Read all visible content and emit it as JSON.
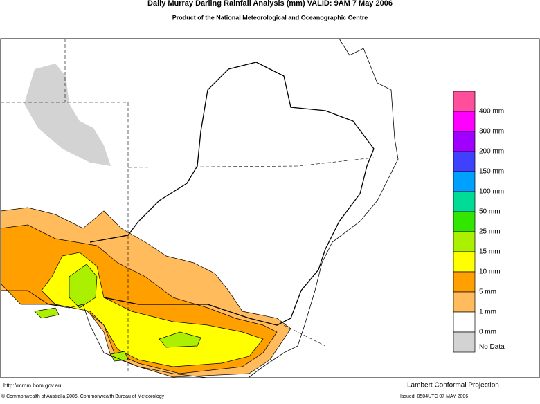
{
  "header": {
    "title": "Daily Murray Darling Rainfall Analysis (mm)  VALID: 9AM  7 May 2006",
    "subtitle": "Product of the National Meteorological and Oceanographic Centre"
  },
  "legend": {
    "colors": [
      "#ff4f9b",
      "#ff00ff",
      "#a000ff",
      "#4040ff",
      "#00a0ff",
      "#00dc96",
      "#33e600",
      "#aaf000",
      "#ffff00",
      "#ff9f00",
      "#ffbb5c",
      "#ffffff",
      "#d3d3d3"
    ],
    "labels": [
      "400 mm",
      "300 mm",
      "200 mm",
      "150 mm",
      "100 mm",
      "50 mm",
      "25 mm",
      "15 mm",
      "10 mm",
      "5 mm",
      "1 mm",
      "0 mm",
      "No Data"
    ]
  },
  "footer": {
    "url": "http://mmm.bom.gov.au",
    "projection": "Lambert Conformal Projection",
    "copyright": "© Commonwealth of Australia 2006, Commonwealth Bureau of Meteorology",
    "issued": "Issued: 0504UTC 07 MAY 2006"
  }
}
